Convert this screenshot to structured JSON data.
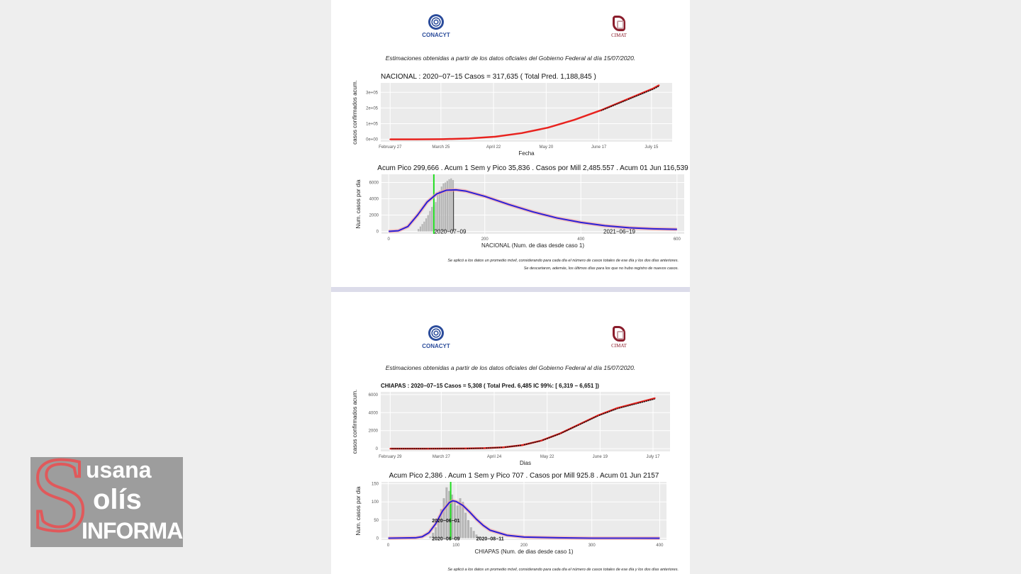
{
  "pages": [
    {
      "logo_left": "CONACYT",
      "logo_right": "CIMAT",
      "subtitle": "Estimaciones obtenidas a partir de los datos oficiales del Gobierno Federal al día 15/07/2020.",
      "footnote_1": "Se aplicó a los datos un promedio móvil, considerando para cada día el número de casos totales de ese día y los dos días anteriores.",
      "footnote_2": "Se descartaron, además, los últimos días para los que no hubo registro de nuevos casos."
    },
    {
      "logo_left": "CONACYT",
      "logo_right": "CIMAT",
      "subtitle": "Estimaciones obtenidas a partir de los datos oficiales del Gobierno Federal al día 15/07/2020.",
      "footnote_1": "Se aplicó a los datos un promedio móvil, considerando para cada día el número de casos totales de ese día y los dos días anteriores."
    }
  ],
  "watermark": {
    "letter": "S",
    "line1": "usana",
    "line2": "olís",
    "line3": "INFORMA"
  },
  "colors": {
    "panel": "#ebebeb",
    "observed": "#111111",
    "fitted": "#e8231f",
    "curve": "#2b1fd6",
    "bars": "#b5b5b5",
    "marker": "#22dd22"
  },
  "chart_data": [
    {
      "type": "line",
      "title": "NACIONAL : 2020−07−15 Casos =  317,635 ( Total Pred. 1,188,845 )",
      "bold_title": false,
      "xlabel": "Fecha",
      "ylabel": "casos confirmados acum.",
      "xlim": [
        -5,
        150
      ],
      "ylim": [
        -15000,
        360000
      ],
      "x_ticks": [
        0,
        27,
        55,
        83,
        111,
        139
      ],
      "x_tick_labels": [
        "February 27",
        "March 25",
        "April 22",
        "May 20",
        "June 17",
        "July 15"
      ],
      "y_ticks": [
        0,
        100000,
        200000,
        300000
      ],
      "y_tick_labels": [
        "0e+00",
        "1e+05",
        "2e+05",
        "3e+05"
      ],
      "x": [
        0,
        14,
        28,
        42,
        56,
        70,
        84,
        98,
        112,
        126,
        140,
        143
      ],
      "fitted": [
        0,
        200,
        1500,
        6000,
        17000,
        40000,
        75000,
        125000,
        185000,
        255000,
        325000,
        345000
      ],
      "observed_from_index": 8
    },
    {
      "type": "bar+line",
      "title": "Acum Pico 299,666 . Acum 1 Sem y Pico 35,836 . Casos por Mill 2,485.557 .  Acum 01 Jun  116,539",
      "xlabel": "NACIONAL  (Num. de dias desde caso 1)",
      "ylabel": "Num. casos por dia",
      "xlim": [
        -15,
        615
      ],
      "ylim": [
        -300,
        7000
      ],
      "x_ticks": [
        0,
        200,
        400,
        600
      ],
      "x_tick_labels": [
        "0",
        "200",
        "400",
        "600"
      ],
      "y_ticks": [
        0,
        2000,
        4000,
        6000
      ],
      "y_tick_labels": [
        "0",
        "2000",
        "4000",
        "6000"
      ],
      "bars_x": [
        62,
        66,
        70,
        74,
        78,
        82,
        86,
        90,
        94,
        98,
        102,
        106,
        110,
        114,
        118,
        122,
        126,
        130,
        134
      ],
      "bars_y": [
        300,
        600,
        900,
        1200,
        1600,
        2000,
        2500,
        3000,
        3200,
        3600,
        4500,
        5000,
        5500,
        5900,
        6000,
        6200,
        6400,
        6500,
        6300
      ],
      "curve_x": [
        0,
        20,
        40,
        60,
        80,
        100,
        120,
        140,
        160,
        200,
        250,
        300,
        350,
        400,
        450,
        500,
        550,
        600
      ],
      "curve_y": [
        0,
        80,
        600,
        2000,
        3600,
        4600,
        5050,
        5100,
        4950,
        4300,
        3300,
        2400,
        1650,
        1100,
        700,
        450,
        320,
        250
      ],
      "vline_green": 94,
      "vline_black": 135,
      "annotations": [
        {
          "x": 128,
          "y": 0,
          "text": "2020−07−09"
        },
        {
          "x": 480,
          "y": 0,
          "text": "2021−06−19"
        }
      ]
    },
    {
      "type": "line",
      "title": "CHIAPAS : 2020−07−15 Casos =  5,308 ( Total Pred. 6,485  IC 99%: [ 6,319 − 6,651 ])",
      "bold_title": true,
      "xlabel": "Dias",
      "ylabel": "casos confirmados acum.",
      "xlim": [
        -5,
        148
      ],
      "ylim": [
        -300,
        6300
      ],
      "x_ticks": [
        0,
        27,
        55,
        83,
        111,
        139
      ],
      "x_tick_labels": [
        "February 29",
        "March 27",
        "April 24",
        "May 22",
        "June 19",
        "July 17"
      ],
      "y_ticks": [
        0,
        2000,
        4000,
        6000
      ],
      "y_tick_labels": [
        "0",
        "2000",
        "4000",
        "6000"
      ],
      "x": [
        0,
        20,
        40,
        50,
        60,
        70,
        80,
        90,
        100,
        110,
        120,
        130,
        140
      ],
      "fitted": [
        0,
        5,
        20,
        60,
        150,
        400,
        900,
        1700,
        2700,
        3700,
        4500,
        5050,
        5600
      ],
      "observed_from_index": 0
    },
    {
      "type": "bar+line",
      "title": "Acum Pico 2,386 . Acum 1 Sem y Pico 707 . Casos por Mill 925.8 .  Acum 01 Jun  2157",
      "xlabel": "CHIAPAS  (Num. de dias desde caso 1)",
      "ylabel": "Num. casos por dia",
      "xlim": [
        -10,
        410
      ],
      "ylim": [
        -5,
        155
      ],
      "x_ticks": [
        0,
        100,
        200,
        300,
        400
      ],
      "x_tick_labels": [
        "0",
        "100",
        "200",
        "300",
        "400"
      ],
      "y_ticks": [
        0,
        50,
        100,
        150
      ],
      "y_tick_labels": [
        "0",
        "50",
        "100",
        "150"
      ],
      "bars_x": [
        62,
        66,
        70,
        74,
        78,
        82,
        86,
        90,
        94,
        98,
        102,
        106,
        110,
        114,
        118,
        122,
        126,
        130,
        134
      ],
      "bars_y": [
        5,
        15,
        30,
        50,
        80,
        110,
        140,
        130,
        120,
        100,
        90,
        110,
        100,
        70,
        50,
        30,
        20,
        10,
        5
      ],
      "curve_x": [
        0,
        40,
        50,
        60,
        70,
        80,
        90,
        95,
        100,
        110,
        120,
        130,
        140,
        150,
        175,
        200,
        250,
        300,
        400
      ],
      "curve_y": [
        0,
        1,
        4,
        15,
        40,
        75,
        98,
        103,
        101,
        90,
        72,
        52,
        35,
        22,
        8,
        3,
        1,
        0,
        0
      ],
      "vline_green": 92,
      "vline_black": null,
      "annotations": [
        {
          "x": 85,
          "y": 50,
          "text": "2020−06−01"
        },
        {
          "x": 85,
          "y": 0,
          "text": "2020−06−09"
        },
        {
          "x": 150,
          "y": 0,
          "text": "2020−08−11"
        }
      ]
    }
  ]
}
